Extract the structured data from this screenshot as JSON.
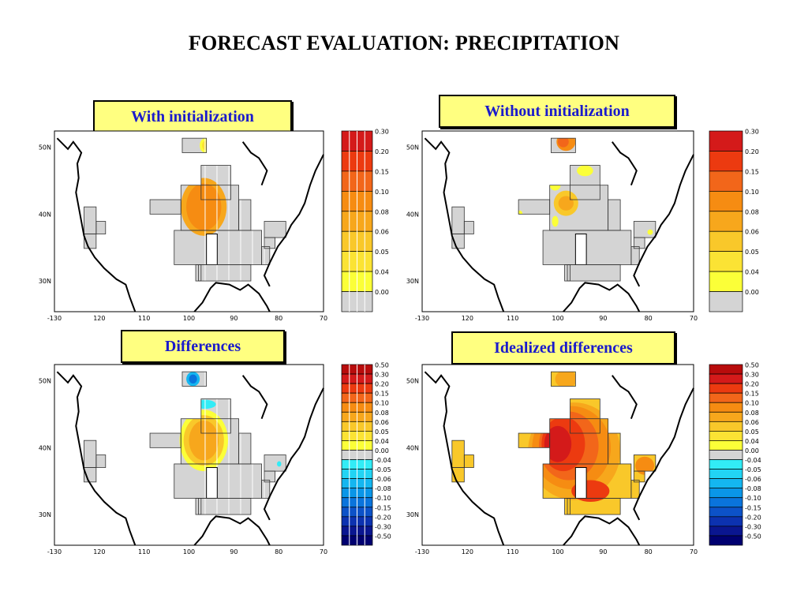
{
  "title": "FORECAST EVALUATION: PRECIPITATION",
  "colors": {
    "label_bg": "#ffff80",
    "label_text": "#1a1acc",
    "land_mask": "#d4d4d4",
    "coast": "#000000"
  },
  "chart_data": [
    {
      "type": "heatmap",
      "title": "With initialization",
      "x_ticks": [
        "-130",
        "120",
        "110",
        "100",
        "90",
        "80",
        "70"
      ],
      "y_ticks": [
        "50N",
        "40N",
        "30N"
      ],
      "colorbar": [
        "0.30",
        "0.20",
        "0.15",
        "0.10",
        "0.08",
        "0.06",
        "0.05",
        "0.04",
        "0.00"
      ],
      "colorbar_colors": [
        "#d41a1a",
        "#ec3a10",
        "#f2661a",
        "#f68c12",
        "#f7a71c",
        "#f9c82a",
        "#fbe334",
        "#fbff38",
        "#d4d4d4"
      ]
    },
    {
      "type": "heatmap",
      "title": "Without initialization",
      "x_ticks": [
        "-130",
        "120",
        "110",
        "100",
        "90",
        "80",
        "70"
      ],
      "y_ticks": [
        "50N",
        "40N",
        "30N"
      ],
      "colorbar": [
        "0.30",
        "0.20",
        "0.15",
        "0.10",
        "0.08",
        "0.06",
        "0.05",
        "0.04",
        "0.00"
      ],
      "colorbar_colors": [
        "#d41a1a",
        "#ec3a10",
        "#f2661a",
        "#f68c12",
        "#f7a71c",
        "#f9c82a",
        "#fbe334",
        "#fbff38",
        "#d4d4d4"
      ]
    },
    {
      "type": "heatmap",
      "title": "Differences",
      "x_ticks": [
        "-130",
        "120",
        "110",
        "100",
        "90",
        "80",
        "70"
      ],
      "y_ticks": [
        "50N",
        "40N",
        "30N"
      ],
      "colorbar": [
        "0.50",
        "0.30",
        "0.20",
        "0.15",
        "0.10",
        "0.08",
        "0.06",
        "0.05",
        "0.04",
        "0.00",
        "-0.04",
        "-0.05",
        "-0.06",
        "-0.08",
        "-0.10",
        "-0.15",
        "-0.20",
        "-0.30",
        "-0.50"
      ],
      "colorbar_colors": [
        "#b80c0c",
        "#d41a1a",
        "#ec3a10",
        "#f2661a",
        "#f68c12",
        "#f7a71c",
        "#f9c82a",
        "#fbe334",
        "#fbff38",
        "#d4d4d4",
        "#32ecf6",
        "#22d4f4",
        "#14b6f0",
        "#0a96e8",
        "#0a74dc",
        "#0c52c8",
        "#0c32b0",
        "#0a1690",
        "#000070"
      ]
    },
    {
      "type": "heatmap",
      "title": "Idealized differences",
      "x_ticks": [
        "-130",
        "120",
        "110",
        "100",
        "90",
        "80",
        "70"
      ],
      "y_ticks": [
        "50N",
        "40N",
        "30N"
      ],
      "colorbar": [
        "0.50",
        "0.30",
        "0.20",
        "0.15",
        "0.10",
        "0.08",
        "0.06",
        "0.05",
        "0.04",
        "0.00",
        "-0.04",
        "-0.05",
        "-0.06",
        "-0.08",
        "-0.10",
        "-0.15",
        "-0.20",
        "-0.30",
        "-0.50"
      ],
      "colorbar_colors": [
        "#b80c0c",
        "#d41a1a",
        "#ec3a10",
        "#f2661a",
        "#f68c12",
        "#f7a71c",
        "#f9c82a",
        "#fbe334",
        "#fbff38",
        "#d4d4d4",
        "#32ecf6",
        "#22d4f4",
        "#14b6f0",
        "#0a96e8",
        "#0a74dc",
        "#0c52c8",
        "#0c32b0",
        "#0a1690",
        "#000070"
      ]
    }
  ]
}
